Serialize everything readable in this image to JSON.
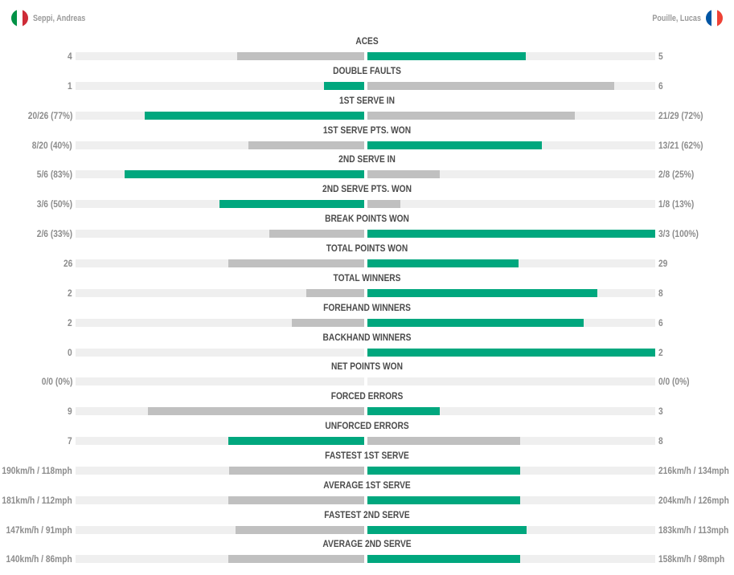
{
  "players": {
    "left": {
      "name": "Seppi, Andreas",
      "flag_colors": [
        "#009246",
        "#ffffff",
        "#ce2b37"
      ],
      "flag_icon": "italy-flag-icon"
    },
    "right": {
      "name": "Pouille, Lucas",
      "flag_colors": [
        "#0055a4",
        "#ffffff",
        "#ef4135"
      ],
      "flag_icon": "france-flag-icon"
    }
  },
  "colors": {
    "winner": "#00a77e",
    "loser": "#c0c0c0",
    "track": "#efefef"
  },
  "chart_data": {
    "type": "bar",
    "orientation": "diverging-horizontal",
    "series": [
      {
        "name": "Seppi, Andreas"
      },
      {
        "name": "Pouille, Lucas"
      }
    ],
    "categories": [
      "ACES",
      "DOUBLE FAULTS",
      "1ST SERVE IN",
      "1ST SERVE PTS. WON",
      "2ND SERVE IN",
      "2ND SERVE PTS. WON",
      "BREAK POINTS WON",
      "TOTAL POINTS WON",
      "TOTAL WINNERS",
      "FOREHAND WINNERS",
      "BACKHAND WINNERS",
      "NET POINTS WON",
      "FORCED ERRORS",
      "UNFORCED ERRORS",
      "FASTEST 1ST SERVE",
      "AVERAGE 1ST SERVE",
      "FASTEST 2ND SERVE",
      "AVERAGE 2ND SERVE"
    ],
    "stats": [
      {
        "label": "ACES",
        "left_text": "4",
        "right_text": "5",
        "left": 0.44,
        "right": 0.55,
        "winner": "right"
      },
      {
        "label": "DOUBLE FAULTS",
        "left_text": "1",
        "right_text": "6",
        "left": 0.14,
        "right": 0.857,
        "winner": "left"
      },
      {
        "label": "1ST SERVE IN",
        "left_text": "20/26 (77%)",
        "right_text": "21/29 (72%)",
        "left": 0.76,
        "right": 0.72,
        "winner": "left"
      },
      {
        "label": "1ST SERVE PTS. WON",
        "left_text": "8/20 (40%)",
        "right_text": "13/21 (62%)",
        "left": 0.4,
        "right": 0.605,
        "winner": "right"
      },
      {
        "label": "2ND SERVE IN",
        "left_text": "5/6 (83%)",
        "right_text": "2/8 (25%)",
        "left": 0.83,
        "right": 0.25,
        "winner": "left"
      },
      {
        "label": "2ND SERVE PTS. WON",
        "left_text": "3/6 (50%)",
        "right_text": "1/8 (13%)",
        "left": 0.5,
        "right": 0.115,
        "winner": "left"
      },
      {
        "label": "BREAK POINTS WON",
        "left_text": "2/6 (33%)",
        "right_text": "3/3 (100%)",
        "left": 0.33,
        "right": 1.0,
        "winner": "right"
      },
      {
        "label": "TOTAL POINTS WON",
        "left_text": "26",
        "right_text": "29",
        "left": 0.47,
        "right": 0.525,
        "winner": "right"
      },
      {
        "label": "TOTAL WINNERS",
        "left_text": "2",
        "right_text": "8",
        "left": 0.2,
        "right": 0.8,
        "winner": "right"
      },
      {
        "label": "FOREHAND WINNERS",
        "left_text": "2",
        "right_text": "6",
        "left": 0.25,
        "right": 0.75,
        "winner": "right"
      },
      {
        "label": "BACKHAND WINNERS",
        "left_text": "0",
        "right_text": "2",
        "left": 0.0,
        "right": 1.0,
        "winner": "right"
      },
      {
        "label": "NET POINTS WON",
        "left_text": "0/0 (0%)",
        "right_text": "0/0 (0%)",
        "left": 0.0,
        "right": 0.0,
        "winner": "none"
      },
      {
        "label": "FORCED ERRORS",
        "left_text": "9",
        "right_text": "3",
        "left": 0.75,
        "right": 0.25,
        "winner": "right"
      },
      {
        "label": "UNFORCED ERRORS",
        "left_text": "7",
        "right_text": "8",
        "left": 0.47,
        "right": 0.53,
        "winner": "left"
      },
      {
        "label": "FASTEST 1ST SERVE",
        "left_text": "190km/h / 118mph",
        "right_text": "216km/h / 134mph",
        "left": 0.468,
        "right": 0.53,
        "winner": "right"
      },
      {
        "label": "AVERAGE 1ST SERVE",
        "left_text": "181km/h / 112mph",
        "right_text": "204km/h / 126mph",
        "left": 0.47,
        "right": 0.53,
        "winner": "right"
      },
      {
        "label": "FASTEST 2ND SERVE",
        "left_text": "147km/h / 91mph",
        "right_text": "183km/h / 113mph",
        "left": 0.445,
        "right": 0.553,
        "winner": "right"
      },
      {
        "label": "AVERAGE 2ND SERVE",
        "left_text": "140km/h / 86mph",
        "right_text": "158km/h / 98mph",
        "left": 0.47,
        "right": 0.53,
        "winner": "right"
      }
    ]
  }
}
